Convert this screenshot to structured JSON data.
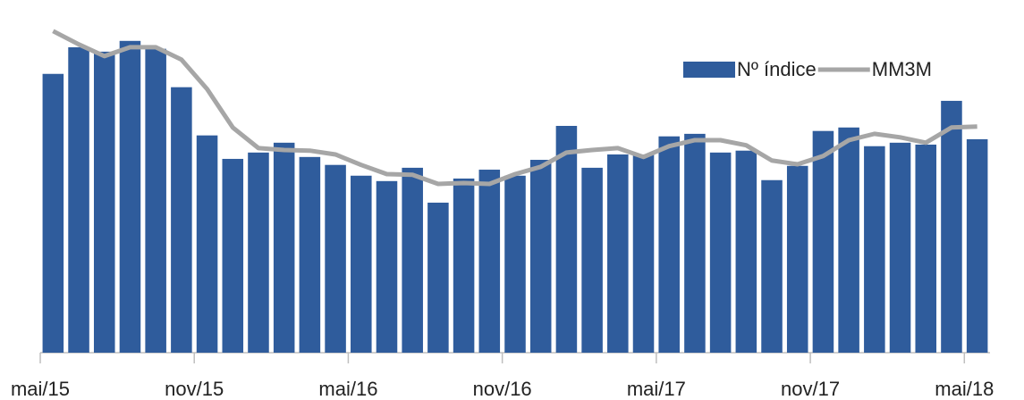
{
  "chart_data": {
    "type": "bar",
    "categories": [
      "mai/15",
      null,
      null,
      null,
      null,
      null,
      "nov/15",
      null,
      null,
      null,
      null,
      null,
      "mai/16",
      null,
      null,
      null,
      null,
      null,
      "nov/16",
      null,
      null,
      null,
      null,
      null,
      "mai/17",
      null,
      null,
      null,
      null,
      null,
      "nov/17",
      null,
      null,
      null,
      null,
      null,
      "mai/18"
    ],
    "series": [
      {
        "name": "Nº índice",
        "color": "#2f5c9c",
        "type": "bar",
        "values": [
          87.9,
          96.3,
          94.9,
          98.3,
          95.8,
          83.7,
          68.5,
          61.1,
          63.1,
          66.2,
          61.7,
          59.2,
          55.8,
          54.1,
          58.3,
          47.3,
          54.9,
          57.7,
          55.8,
          60.8,
          71.5,
          58.3,
          62.5,
          62.5,
          68.2,
          69.0,
          63.1,
          63.7,
          54.4,
          58.9,
          69.9,
          71.0,
          65.1,
          66.2,
          65.6,
          79.4,
          67.3
        ]
      },
      {
        "name": "MM3M",
        "color": "#a6a6a6",
        "type": "line",
        "values": [
          101.4,
          97.2,
          93.5,
          96.3,
          96.3,
          92.4,
          83.1,
          71.0,
          64.5,
          63.9,
          63.7,
          62.5,
          59.2,
          56.3,
          56.1,
          53.2,
          53.5,
          53.2,
          56.3,
          58.6,
          63.1,
          63.9,
          64.5,
          61.7,
          65.1,
          67.0,
          67.0,
          65.4,
          60.6,
          59.4,
          62.0,
          67.0,
          69.0,
          67.9,
          66.2,
          71.0,
          71.3
        ]
      }
    ],
    "ylim": [
      0,
      105
    ],
    "legend": "upper right"
  }
}
